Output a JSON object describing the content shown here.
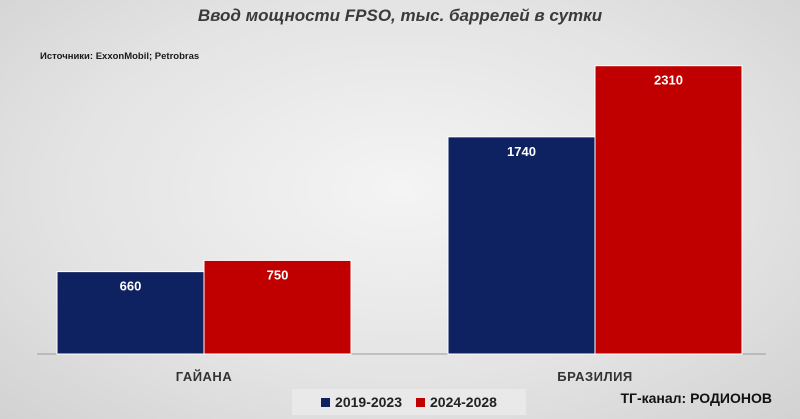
{
  "title": "Ввод мощности FPSO, тыс. баррелей в сутки",
  "source": "Источники: ExxonMobil; Petrobras",
  "credit": "ТГ-канал: РОДИОНОВ",
  "colors": {
    "series1": "#0e2160",
    "series2": "#c00000"
  },
  "chart_data": {
    "type": "bar",
    "title": "Ввод мощности FPSO, тыс. баррелей в сутки",
    "categories": [
      "ГАЙАНА",
      "БРАЗИЛИЯ"
    ],
    "series": [
      {
        "name": "2019-2023",
        "values": [
          660,
          1740
        ]
      },
      {
        "name": "2024-2028",
        "values": [
          750,
          2310
        ]
      }
    ],
    "ylim": [
      0,
      2500
    ],
    "grid": false,
    "legend": "bottom"
  }
}
